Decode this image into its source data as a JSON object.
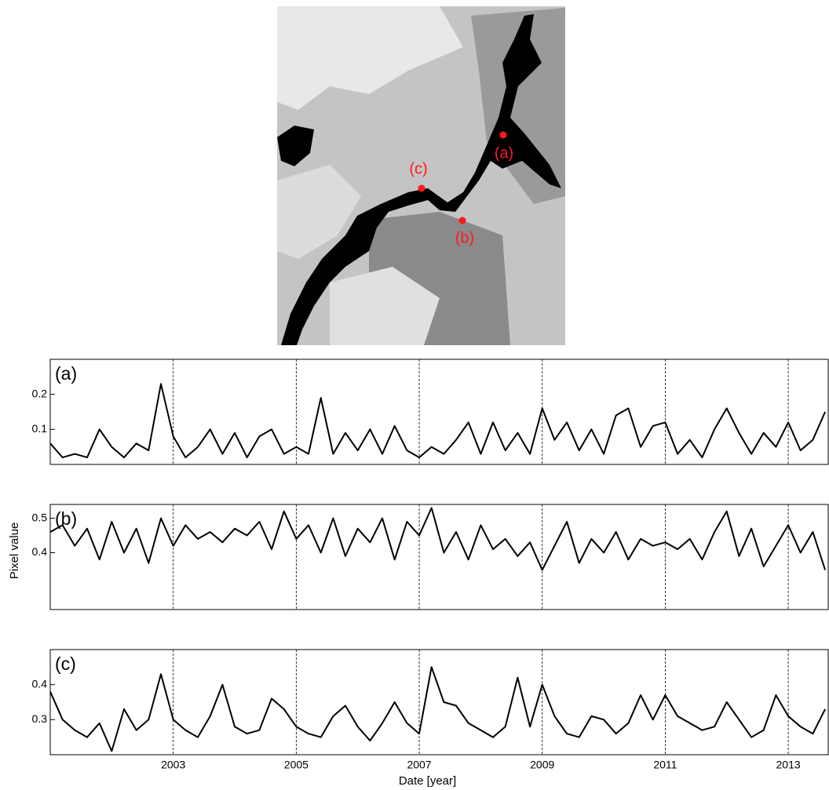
{
  "map": {
    "labels": [
      "(a)",
      "(b)",
      "(c)"
    ]
  },
  "chart_data": [
    {
      "type": "line",
      "annotation": "(a)",
      "color": "#000000",
      "grid": true,
      "show_xtick_labels": false,
      "xlim": [
        2001,
        2013.65
      ],
      "xticks": [
        2003,
        2005,
        2007,
        2009,
        2011,
        2013
      ],
      "ylim": [
        0,
        0.3
      ],
      "yticks": [
        0.1,
        0.2
      ],
      "x": [
        2001.0,
        2001.2,
        2001.4,
        2001.6,
        2001.8,
        2002.0,
        2002.2,
        2002.4,
        2002.6,
        2002.8,
        2003.0,
        2003.2,
        2003.4,
        2003.6,
        2003.8,
        2004.0,
        2004.2,
        2004.4,
        2004.6,
        2004.8,
        2005.0,
        2005.2,
        2005.4,
        2005.6,
        2005.8,
        2006.0,
        2006.2,
        2006.4,
        2006.6,
        2006.8,
        2007.0,
        2007.2,
        2007.4,
        2007.6,
        2007.8,
        2008.0,
        2008.2,
        2008.4,
        2008.6,
        2008.8,
        2009.0,
        2009.2,
        2009.4,
        2009.6,
        2009.8,
        2010.0,
        2010.2,
        2010.4,
        2010.6,
        2010.8,
        2011.0,
        2011.2,
        2011.4,
        2011.6,
        2011.8,
        2012.0,
        2012.2,
        2012.4,
        2012.6,
        2012.8,
        2013.0,
        2013.2,
        2013.4,
        2013.6
      ],
      "values": [
        0.06,
        0.02,
        0.03,
        0.02,
        0.1,
        0.05,
        0.02,
        0.06,
        0.04,
        0.23,
        0.08,
        0.02,
        0.05,
        0.1,
        0.03,
        0.09,
        0.02,
        0.08,
        0.1,
        0.03,
        0.05,
        0.03,
        0.19,
        0.03,
        0.09,
        0.04,
        0.1,
        0.03,
        0.11,
        0.04,
        0.02,
        0.05,
        0.03,
        0.07,
        0.12,
        0.03,
        0.12,
        0.04,
        0.09,
        0.03,
        0.16,
        0.07,
        0.12,
        0.04,
        0.1,
        0.03,
        0.14,
        0.16,
        0.05,
        0.11,
        0.12,
        0.03,
        0.07,
        0.02,
        0.1,
        0.16,
        0.09,
        0.03,
        0.09,
        0.05,
        0.12,
        0.04,
        0.07,
        0.15
      ]
    },
    {
      "type": "line",
      "annotation": "(b)",
      "ylabel": "Pixel value",
      "color": "#000000",
      "grid": true,
      "show_xtick_labels": false,
      "xlim": [
        2001,
        2013.65
      ],
      "xticks": [
        2003,
        2005,
        2007,
        2009,
        2011,
        2013
      ],
      "ylim": [
        0.235,
        0.54
      ],
      "yticks": [
        0.4,
        0.5
      ],
      "x": [
        2001.0,
        2001.2,
        2001.4,
        2001.6,
        2001.8,
        2002.0,
        2002.2,
        2002.4,
        2002.6,
        2002.8,
        2003.0,
        2003.2,
        2003.4,
        2003.6,
        2003.8,
        2004.0,
        2004.2,
        2004.4,
        2004.6,
        2004.8,
        2005.0,
        2005.2,
        2005.4,
        2005.6,
        2005.8,
        2006.0,
        2006.2,
        2006.4,
        2006.6,
        2006.8,
        2007.0,
        2007.2,
        2007.4,
        2007.6,
        2007.8,
        2008.0,
        2008.2,
        2008.4,
        2008.6,
        2008.8,
        2009.0,
        2009.2,
        2009.4,
        2009.6,
        2009.8,
        2010.0,
        2010.2,
        2010.4,
        2010.6,
        2010.8,
        2011.0,
        2011.2,
        2011.4,
        2011.6,
        2011.8,
        2012.0,
        2012.2,
        2012.4,
        2012.6,
        2012.8,
        2013.0,
        2013.2,
        2013.4,
        2013.6
      ],
      "values": [
        0.46,
        0.48,
        0.42,
        0.47,
        0.38,
        0.49,
        0.4,
        0.47,
        0.37,
        0.5,
        0.42,
        0.48,
        0.44,
        0.46,
        0.43,
        0.47,
        0.45,
        0.49,
        0.41,
        0.52,
        0.44,
        0.48,
        0.4,
        0.5,
        0.39,
        0.47,
        0.43,
        0.5,
        0.38,
        0.49,
        0.45,
        0.53,
        0.4,
        0.46,
        0.38,
        0.48,
        0.41,
        0.44,
        0.39,
        0.43,
        0.35,
        0.42,
        0.49,
        0.37,
        0.44,
        0.4,
        0.46,
        0.38,
        0.44,
        0.42,
        0.43,
        0.41,
        0.44,
        0.38,
        0.46,
        0.52,
        0.39,
        0.47,
        0.36,
        0.42,
        0.48,
        0.4,
        0.46,
        0.35
      ]
    },
    {
      "type": "line",
      "annotation": "(c)",
      "xlabel": "Date [year]",
      "color": "#000000",
      "grid": true,
      "show_xtick_labels": true,
      "xlim": [
        2001,
        2013.65
      ],
      "xticks": [
        2003,
        2005,
        2007,
        2009,
        2011,
        2013
      ],
      "ylim": [
        0.2,
        0.5
      ],
      "yticks": [
        0.3,
        0.4
      ],
      "x": [
        2001.0,
        2001.2,
        2001.4,
        2001.6,
        2001.8,
        2002.0,
        2002.2,
        2002.4,
        2002.6,
        2002.8,
        2003.0,
        2003.2,
        2003.4,
        2003.6,
        2003.8,
        2004.0,
        2004.2,
        2004.4,
        2004.6,
        2004.8,
        2005.0,
        2005.2,
        2005.4,
        2005.6,
        2005.8,
        2006.0,
        2006.2,
        2006.4,
        2006.6,
        2006.8,
        2007.0,
        2007.2,
        2007.4,
        2007.6,
        2007.8,
        2008.0,
        2008.2,
        2008.4,
        2008.6,
        2008.8,
        2009.0,
        2009.2,
        2009.4,
        2009.6,
        2009.8,
        2010.0,
        2010.2,
        2010.4,
        2010.6,
        2010.8,
        2011.0,
        2011.2,
        2011.4,
        2011.6,
        2011.8,
        2012.0,
        2012.2,
        2012.4,
        2012.6,
        2012.8,
        2013.0,
        2013.2,
        2013.4,
        2013.6
      ],
      "values": [
        0.38,
        0.3,
        0.27,
        0.25,
        0.29,
        0.21,
        0.33,
        0.27,
        0.3,
        0.43,
        0.3,
        0.27,
        0.25,
        0.31,
        0.4,
        0.28,
        0.26,
        0.27,
        0.36,
        0.33,
        0.28,
        0.26,
        0.25,
        0.31,
        0.34,
        0.28,
        0.24,
        0.29,
        0.35,
        0.29,
        0.26,
        0.45,
        0.35,
        0.34,
        0.29,
        0.27,
        0.25,
        0.28,
        0.42,
        0.28,
        0.4,
        0.31,
        0.26,
        0.25,
        0.31,
        0.3,
        0.26,
        0.29,
        0.37,
        0.3,
        0.37,
        0.31,
        0.29,
        0.27,
        0.28,
        0.35,
        0.3,
        0.25,
        0.27,
        0.37,
        0.31,
        0.28,
        0.26,
        0.33
      ]
    }
  ]
}
